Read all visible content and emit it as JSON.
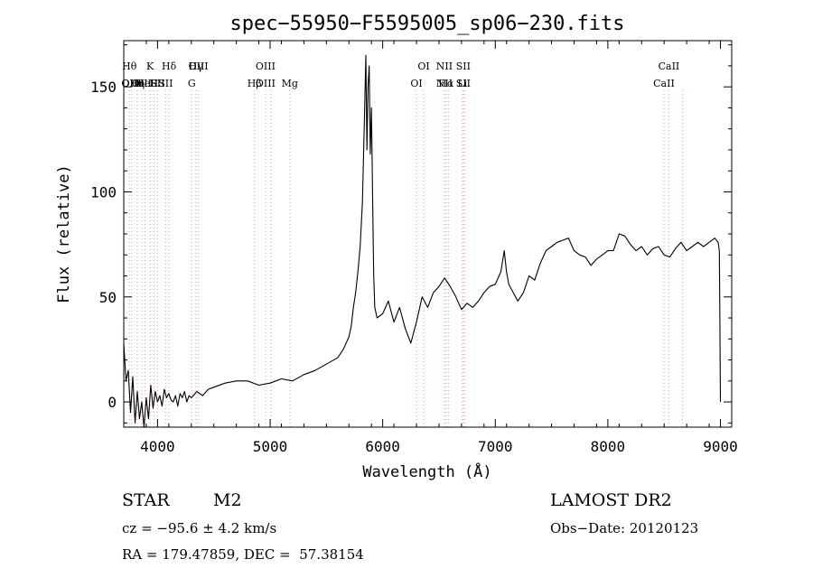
{
  "chart_data": {
    "type": "line",
    "title": "spec−55950−F5595005_sp06−230.fits",
    "xlabel": "Wavelength (Å)",
    "ylabel": "Flux (relative)",
    "xlim": [
      3700,
      9100
    ],
    "ylim": [
      -12,
      172
    ],
    "xticks": [
      4000,
      5000,
      6000,
      7000,
      8000,
      9000
    ],
    "yticks": [
      0,
      50,
      100,
      150
    ],
    "line_color": "#000000",
    "marker_color": "#e8a0a0",
    "grid": false,
    "series": [
      {
        "x": [
          3700,
          3720,
          3740,
          3760,
          3780,
          3800,
          3820,
          3840,
          3860,
          3880,
          3900,
          3920,
          3940,
          3960,
          3980,
          4000,
          4020,
          4040,
          4060,
          4080,
          4100,
          4120,
          4140,
          4160,
          4180,
          4200,
          4220,
          4240,
          4260,
          4280,
          4300,
          4350,
          4400,
          4450,
          4500,
          4600,
          4700,
          4800,
          4900,
          5000,
          5100,
          5200,
          5300,
          5400,
          5500,
          5600,
          5650,
          5700,
          5720,
          5740,
          5760,
          5780,
          5800,
          5820,
          5840,
          5850,
          5860,
          5870,
          5880,
          5890,
          5900,
          5910,
          5920,
          5930,
          5950,
          6000,
          6050,
          6100,
          6150,
          6200,
          6250,
          6300,
          6350,
          6400,
          6450,
          6500,
          6550,
          6600,
          6650,
          6700,
          6750,
          6800,
          6850,
          6900,
          6950,
          7000,
          7050,
          7080,
          7100,
          7120,
          7150,
          7200,
          7250,
          7300,
          7350,
          7400,
          7450,
          7500,
          7550,
          7600,
          7650,
          7700,
          7750,
          7800,
          7850,
          7900,
          7950,
          8000,
          8050,
          8100,
          8150,
          8200,
          8250,
          8300,
          8350,
          8400,
          8450,
          8500,
          8550,
          8600,
          8650,
          8700,
          8750,
          8800,
          8850,
          8900,
          8950,
          8980,
          8990,
          8995,
          9000
        ],
        "y": [
          28,
          10,
          15,
          -5,
          12,
          -10,
          5,
          -8,
          0,
          -12,
          2,
          -8,
          8,
          -3,
          5,
          0,
          3,
          -2,
          6,
          2,
          4,
          1,
          0,
          3,
          -2,
          4,
          2,
          5,
          0,
          3,
          2,
          5,
          3,
          6,
          7,
          9,
          10,
          10,
          8,
          9,
          11,
          10,
          13,
          15,
          18,
          21,
          25,
          31,
          36,
          45,
          52,
          62,
          74,
          95,
          140,
          165,
          120,
          150,
          160,
          118,
          140,
          100,
          60,
          45,
          40,
          42,
          48,
          38,
          45,
          35,
          28,
          38,
          50,
          45,
          52,
          55,
          59,
          55,
          50,
          44,
          47,
          45,
          48,
          52,
          55,
          56,
          62,
          72,
          62,
          56,
          53,
          48,
          52,
          60,
          58,
          66,
          72,
          74,
          76,
          77,
          78,
          72,
          70,
          69,
          65,
          68,
          70,
          72,
          72,
          80,
          79,
          75,
          72,
          74,
          70,
          73,
          74,
          70,
          69,
          73,
          76,
          72,
          74,
          76,
          74,
          76,
          78,
          76,
          72,
          40,
          0
        ]
      }
    ],
    "lines": [
      {
        "x": 3750,
        "top": "Hθ",
        "bottom": "OII"
      },
      {
        "x": 3770,
        "top": "",
        "bottom": "OIII"
      },
      {
        "x": 3820,
        "top": "",
        "bottom": "Hη"
      },
      {
        "x": 3860,
        "top": "",
        "bottom": "OIII"
      },
      {
        "x": 3889,
        "top": "",
        "bottom": "HeI"
      },
      {
        "x": 3934,
        "top": "K",
        "bottom": ""
      },
      {
        "x": 3968,
        "top": "",
        "bottom": "H"
      },
      {
        "x": 4000,
        "top": "",
        "bottom": "SII"
      },
      {
        "x": 4072,
        "top": "",
        "bottom": "SII"
      },
      {
        "x": 4102,
        "top": "Hδ",
        "bottom": ""
      },
      {
        "x": 4304,
        "top": "",
        "bottom": "G"
      },
      {
        "x": 4341,
        "top": "Hγ",
        "bottom": ""
      },
      {
        "x": 4363,
        "top": "OIII",
        "bottom": ""
      },
      {
        "x": 4861,
        "top": "",
        "bottom": "Hβ"
      },
      {
        "x": 4959,
        "top": "OIII",
        "bottom": "OIII"
      },
      {
        "x": 5007,
        "top": "",
        "bottom": ""
      },
      {
        "x": 5175,
        "top": "",
        "bottom": "Mg"
      },
      {
        "x": 6300,
        "top": "",
        "bottom": "OI"
      },
      {
        "x": 6364,
        "top": "OI",
        "bottom": ""
      },
      {
        "x": 6548,
        "top": "NII",
        "bottom": "NII"
      },
      {
        "x": 6563,
        "top": "",
        "bottom": "Hα"
      },
      {
        "x": 6583,
        "top": "",
        "bottom": ""
      },
      {
        "x": 6708,
        "top": "",
        "bottom": "Li"
      },
      {
        "x": 6716,
        "top": "SII",
        "bottom": "SII"
      },
      {
        "x": 6731,
        "top": "",
        "bottom": ""
      },
      {
        "x": 8498,
        "top": "",
        "bottom": "CaII"
      },
      {
        "x": 8542,
        "top": "CaII",
        "bottom": ""
      },
      {
        "x": 8662,
        "top": "",
        "bottom": ""
      }
    ]
  },
  "info": {
    "object_class": "STAR",
    "subclass": "M2",
    "survey": "LAMOST DR2",
    "redshift": "cz = −95.6 ± 4.2 km/s",
    "obs_date": "Obs−Date: 20120123",
    "coords": "RA = 179.47859, DEC =  57.38154"
  }
}
